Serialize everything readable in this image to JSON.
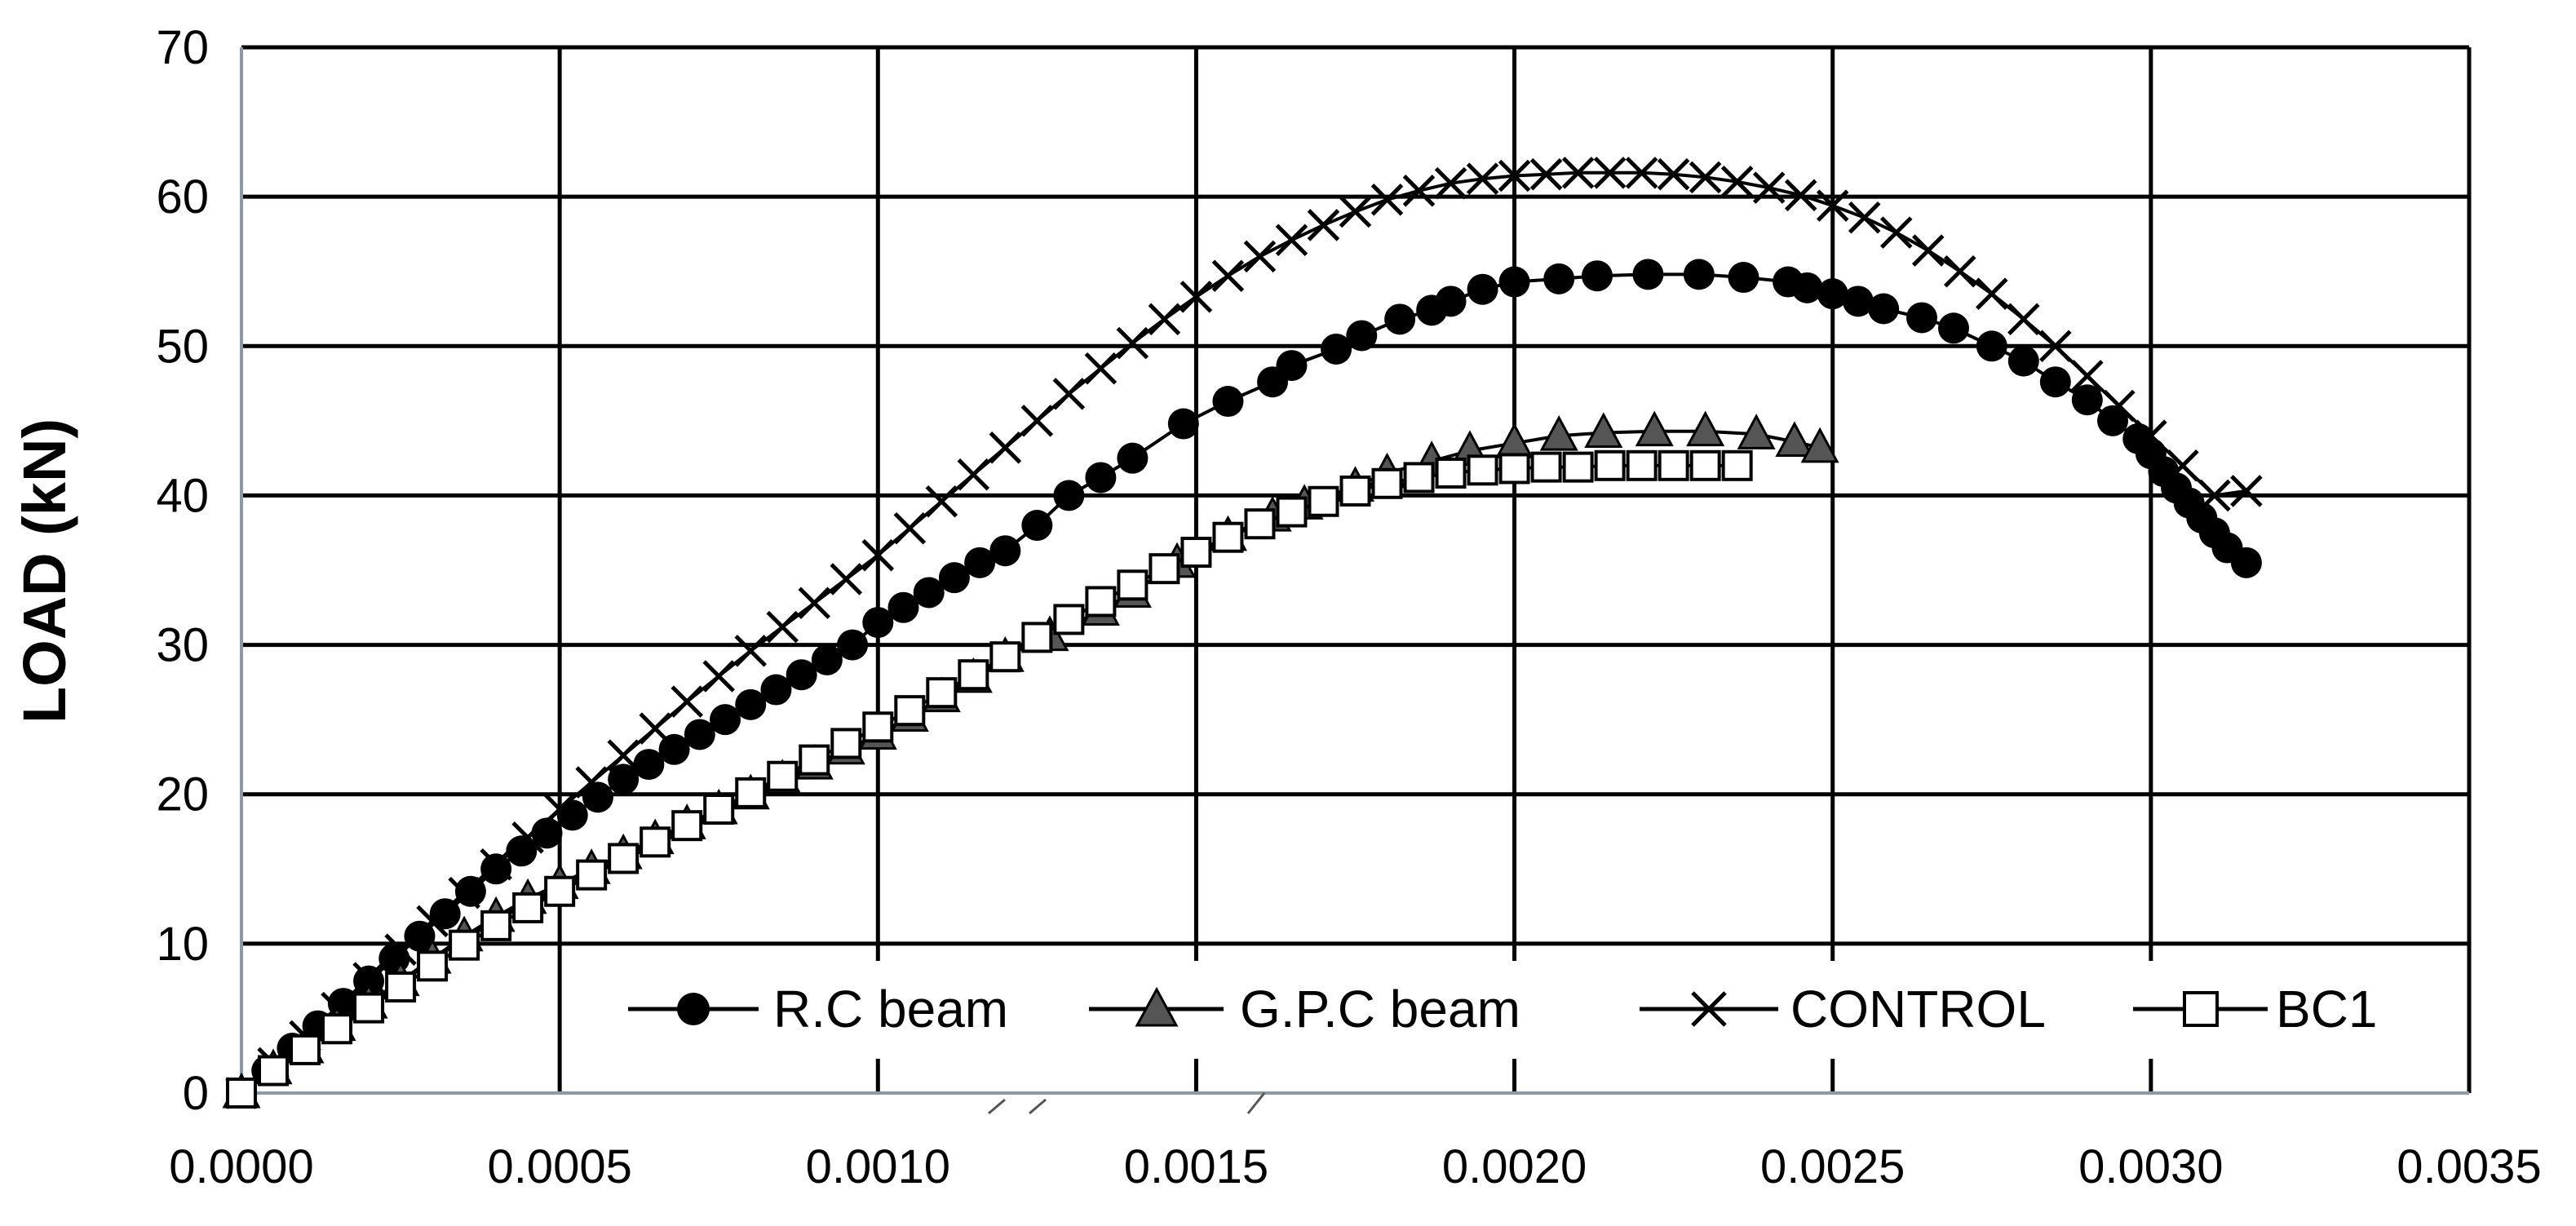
{
  "chart_data": {
    "type": "line",
    "title": "",
    "xlabel": "",
    "ylabel": "LOAD (kN)",
    "xlim": [
      0,
      0.0035
    ],
    "ylim": [
      0,
      70
    ],
    "grid": true,
    "legend_position": "bottom-right",
    "x_tick_labels": [
      "0.0000",
      "0.0005",
      "0.0010",
      "0.0015",
      "0.0020",
      "0.0025",
      "0.0030",
      "0.0035"
    ],
    "y_tick_labels": [
      "0",
      "10",
      "20",
      "30",
      "40",
      "50",
      "60",
      "70"
    ],
    "series": [
      {
        "name": "R.C beam",
        "marker": "filled-circle",
        "color": "#000000",
        "x": [
          0,
          4e-05,
          8e-05,
          0.00012,
          0.00016,
          0.0002,
          0.00024,
          0.00028,
          0.00032,
          0.00036,
          0.0004,
          0.00044,
          0.00048,
          0.00052,
          0.00056,
          0.0006,
          0.00064,
          0.00068,
          0.00072,
          0.00076,
          0.0008,
          0.00084,
          0.00088,
          0.00092,
          0.00096,
          0.001,
          0.00104,
          0.00108,
          0.00112,
          0.00116,
          0.0012,
          0.00125,
          0.0013,
          0.00135,
          0.0014,
          0.00148,
          0.00155,
          0.00162,
          0.00165,
          0.00172,
          0.00176,
          0.00182,
          0.00187,
          0.0019,
          0.00195,
          0.002,
          0.00207,
          0.00213,
          0.00221,
          0.00229,
          0.00236,
          0.00243,
          0.00246,
          0.0025,
          0.00254,
          0.00258,
          0.00264,
          0.00269,
          0.00275,
          0.0028,
          0.00285,
          0.0029,
          0.00294,
          0.00298,
          0.003,
          0.00302,
          0.00304,
          0.00306,
          0.00308,
          0.0031,
          0.00312,
          0.00315
        ],
        "y": [
          0,
          1.5,
          3,
          4.5,
          6,
          7.5,
          9,
          10.5,
          12,
          13.5,
          15,
          16.2,
          17.4,
          18.6,
          19.8,
          21,
          22,
          23,
          24,
          25,
          26,
          27,
          28,
          29,
          30,
          31.5,
          32.5,
          33.5,
          34.5,
          35.5,
          36.3,
          38,
          40,
          41.2,
          42.5,
          44.8,
          46.3,
          47.6,
          48.7,
          49.8,
          50.7,
          51.8,
          52.4,
          53,
          53.8,
          54.3,
          54.5,
          54.7,
          54.8,
          54.8,
          54.6,
          54.3,
          53.9,
          53.5,
          53,
          52.5,
          51.9,
          51.2,
          50,
          49,
          47.6,
          46.4,
          45,
          43.8,
          42.8,
          41.6,
          40.5,
          39.5,
          38.5,
          37.5,
          36.5,
          35.5
        ]
      },
      {
        "name": "G.P.C beam",
        "marker": "triangle",
        "color": "#555555",
        "x": [
          0,
          5e-05,
          0.0001,
          0.00015,
          0.0002,
          0.00025,
          0.0003,
          0.00035,
          0.0004,
          0.00045,
          0.0005,
          0.00055,
          0.0006,
          0.00065,
          0.0007,
          0.00075,
          0.0008,
          0.00085,
          0.0009,
          0.00095,
          0.001,
          0.00105,
          0.0011,
          0.00115,
          0.0012,
          0.00127,
          0.00135,
          0.0014,
          0.00147,
          0.00155,
          0.00162,
          0.00167,
          0.00175,
          0.0018,
          0.00187,
          0.00193,
          0.002,
          0.00207,
          0.00214,
          0.00222,
          0.0023,
          0.00238,
          0.00244,
          0.00248
        ],
        "y": [
          0,
          1.6,
          3,
          4.5,
          6,
          7.5,
          9,
          10.5,
          11.8,
          13,
          14,
          15,
          16,
          17,
          18,
          19,
          20,
          21,
          22,
          23,
          24,
          25.2,
          26.5,
          27.8,
          29.2,
          30.6,
          32.3,
          33.5,
          35.5,
          37.3,
          38.6,
          39.4,
          40.6,
          41.5,
          42.3,
          43,
          43.5,
          44,
          44.2,
          44.3,
          44.3,
          44.1,
          43.6,
          43.2
        ]
      },
      {
        "name": "CONTROL",
        "marker": "x",
        "color": "#000000",
        "x": [
          0,
          5e-05,
          0.0001,
          0.00015,
          0.0002,
          0.00025,
          0.0003,
          0.00035,
          0.0004,
          0.00045,
          0.0005,
          0.00055,
          0.0006,
          0.00065,
          0.0007,
          0.00075,
          0.0008,
          0.00085,
          0.0009,
          0.00095,
          0.001,
          0.00105,
          0.0011,
          0.00115,
          0.0012,
          0.00125,
          0.0013,
          0.00135,
          0.0014,
          0.00145,
          0.0015,
          0.00155,
          0.0016,
          0.00165,
          0.0017,
          0.00175,
          0.0018,
          0.00185,
          0.0019,
          0.00195,
          0.002,
          0.00205,
          0.0021,
          0.00215,
          0.0022,
          0.00225,
          0.0023,
          0.00235,
          0.0024,
          0.00245,
          0.0025,
          0.00255,
          0.0026,
          0.00265,
          0.0027,
          0.00275,
          0.0028,
          0.00285,
          0.0029,
          0.00295,
          0.003,
          0.00305,
          0.0031,
          0.00315
        ],
        "y": [
          0,
          2,
          3.8,
          5.7,
          7.7,
          9.6,
          11.5,
          13.4,
          15.3,
          17.1,
          19,
          20.8,
          22.6,
          24.4,
          26.2,
          27.9,
          29.6,
          31.2,
          32.8,
          34.4,
          36,
          37.8,
          39.6,
          41.4,
          43.2,
          45,
          46.8,
          48.5,
          50.2,
          51.8,
          53.3,
          54.7,
          56,
          57.1,
          58.1,
          59,
          59.8,
          60.4,
          60.9,
          61.2,
          61.4,
          61.5,
          61.6,
          61.6,
          61.6,
          61.5,
          61.3,
          61,
          60.6,
          60.1,
          59.4,
          58.6,
          57.6,
          56.4,
          55,
          53.5,
          51.8,
          50,
          48,
          46,
          44,
          42,
          40,
          40.3
        ]
      },
      {
        "name": "BC1",
        "marker": "square",
        "color": "#000000",
        "x": [
          0,
          5e-05,
          0.0001,
          0.00015,
          0.0002,
          0.00025,
          0.0003,
          0.00035,
          0.0004,
          0.00045,
          0.0005,
          0.00055,
          0.0006,
          0.00065,
          0.0007,
          0.00075,
          0.0008,
          0.00085,
          0.0009,
          0.00095,
          0.001,
          0.00105,
          0.0011,
          0.00115,
          0.0012,
          0.00125,
          0.0013,
          0.00135,
          0.0014,
          0.00145,
          0.0015,
          0.00155,
          0.0016,
          0.00165,
          0.0017,
          0.00175,
          0.0018,
          0.00185,
          0.0019,
          0.00195,
          0.002,
          0.00205,
          0.0021,
          0.00215,
          0.0022,
          0.00225,
          0.0023,
          0.00235
        ],
        "y": [
          0,
          1.5,
          2.9,
          4.3,
          5.7,
          7.1,
          8.5,
          9.9,
          11.2,
          12.4,
          13.5,
          14.6,
          15.7,
          16.8,
          17.9,
          19,
          20.1,
          21.2,
          22.3,
          23.4,
          24.5,
          25.6,
          26.8,
          28,
          29.2,
          30.5,
          31.7,
          32.9,
          34,
          35.1,
          36.2,
          37.2,
          38.1,
          38.9,
          39.6,
          40.3,
          40.8,
          41.2,
          41.5,
          41.7,
          41.8,
          41.9,
          41.9,
          42,
          42,
          42,
          42,
          42
        ]
      }
    ]
  }
}
